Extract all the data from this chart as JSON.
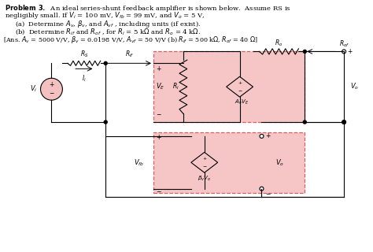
{
  "bg_color": "#ffffff",
  "text_color": "#000000",
  "circuit_pink": "#f5bfbf",
  "circuit_border": "#cc5555",
  "source_pink": "#f5c0c0"
}
